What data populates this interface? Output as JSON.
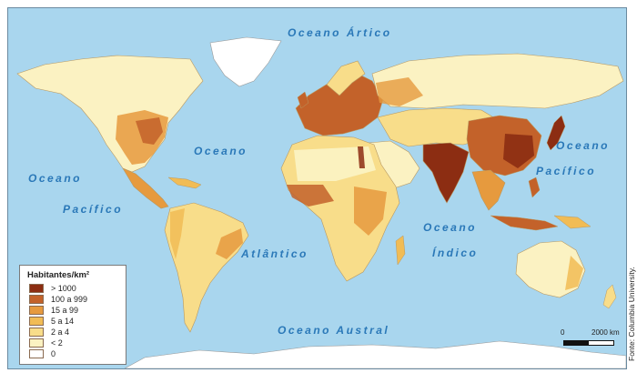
{
  "oceans": {
    "arctic": "Oceano Ártico",
    "atlantic_top": "Oceano",
    "atlantic_bottom": "Atlântico",
    "pacific_left_top": "Oceano",
    "pacific_left_bottom": "Pacífico",
    "pacific_right_top": "Oceano",
    "pacific_right_bottom": "Pacífico",
    "indian_top": "Oceano",
    "indian_bottom": "Índico",
    "southern": "Oceano Austral"
  },
  "legend": {
    "title": "Habitantes/km²",
    "items": [
      {
        "label": "> 1000",
        "color": "#8c2d12"
      },
      {
        "label": "100 a 999",
        "color": "#c3622a"
      },
      {
        "label": "15 a 99",
        "color": "#e69a3e"
      },
      {
        "label": "5 a 14",
        "color": "#f1bc55"
      },
      {
        "label": "2 a 4",
        "color": "#f8dd8a"
      },
      {
        "label": "< 2",
        "color": "#fbf2c2"
      },
      {
        "label": "0",
        "color": "#ffffff"
      }
    ]
  },
  "scale": {
    "start": "0",
    "end": "2000 km"
  },
  "source": "Fonte: Columbia University.",
  "colors": {
    "ocean": "#a9d6ee",
    "ocean_label": "#2a78b8",
    "ice": "#ffffff"
  }
}
